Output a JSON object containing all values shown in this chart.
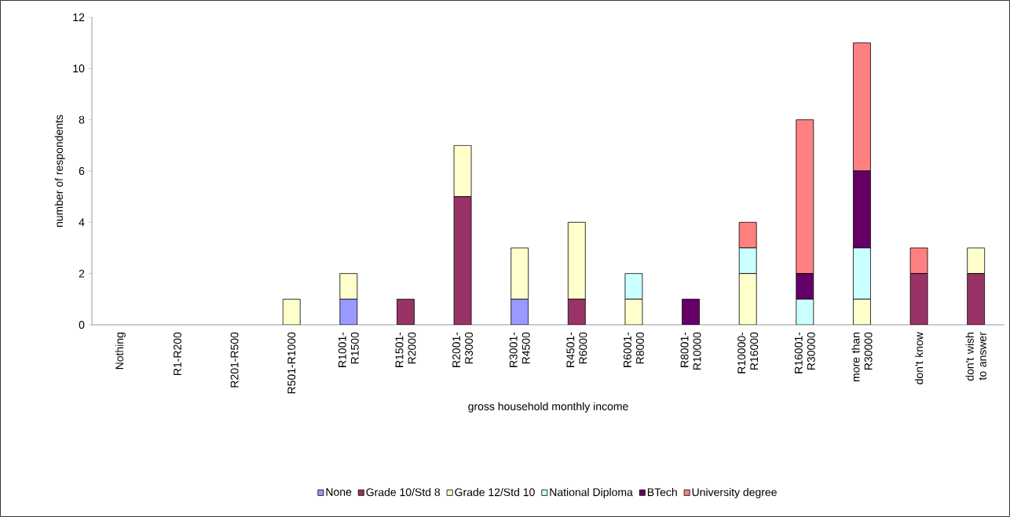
{
  "chart_data": {
    "type": "bar",
    "stacked": true,
    "xlabel": "gross household monthly income",
    "ylabel": "number of respondents",
    "categories": [
      "Nothing",
      "R1-R200",
      "R201-R500",
      "R501-R1000",
      "R1001-R1500",
      "R1501-R2000",
      "R2001-R3000",
      "R3001-R4500",
      "R4501-R6000",
      "R6001-R8000",
      "R8001-R10000",
      "R10000- R16000",
      "R16001- R30000",
      "more than R30000",
      "don't know",
      "don't wish to answer"
    ],
    "series": [
      {
        "name": "None",
        "color": "#9999ff",
        "values": [
          0,
          0,
          0,
          0,
          1,
          0,
          0,
          1,
          0,
          0,
          0,
          0,
          0,
          0,
          0,
          0
        ]
      },
      {
        "name": "Grade 10/Std 8",
        "color": "#993366",
        "values": [
          0,
          0,
          0,
          0,
          0,
          1,
          5,
          0,
          1,
          0,
          0,
          0,
          0,
          0,
          2,
          2
        ]
      },
      {
        "name": "Grade 12/Std 10",
        "color": "#ffffcc",
        "values": [
          0,
          0,
          0,
          1,
          1,
          0,
          2,
          2,
          3,
          1,
          0,
          2,
          0,
          1,
          0,
          1
        ]
      },
      {
        "name": "National Diploma",
        "color": "#ccffff",
        "values": [
          0,
          0,
          0,
          0,
          0,
          0,
          0,
          0,
          0,
          1,
          0,
          1,
          1,
          2,
          0,
          0
        ]
      },
      {
        "name": "BTech",
        "color": "#660066",
        "values": [
          0,
          0,
          0,
          0,
          0,
          0,
          0,
          0,
          0,
          0,
          1,
          0,
          1,
          3,
          0,
          0
        ]
      },
      {
        "name": "University degree",
        "color": "#ff8080",
        "values": [
          0,
          0,
          0,
          0,
          0,
          0,
          0,
          0,
          0,
          0,
          0,
          1,
          6,
          5,
          1,
          0
        ]
      }
    ],
    "ylim": [
      0,
      12
    ],
    "yticks": [
      0,
      2,
      4,
      6,
      8,
      10,
      12
    ],
    "grid": false,
    "legend": "bottom"
  }
}
